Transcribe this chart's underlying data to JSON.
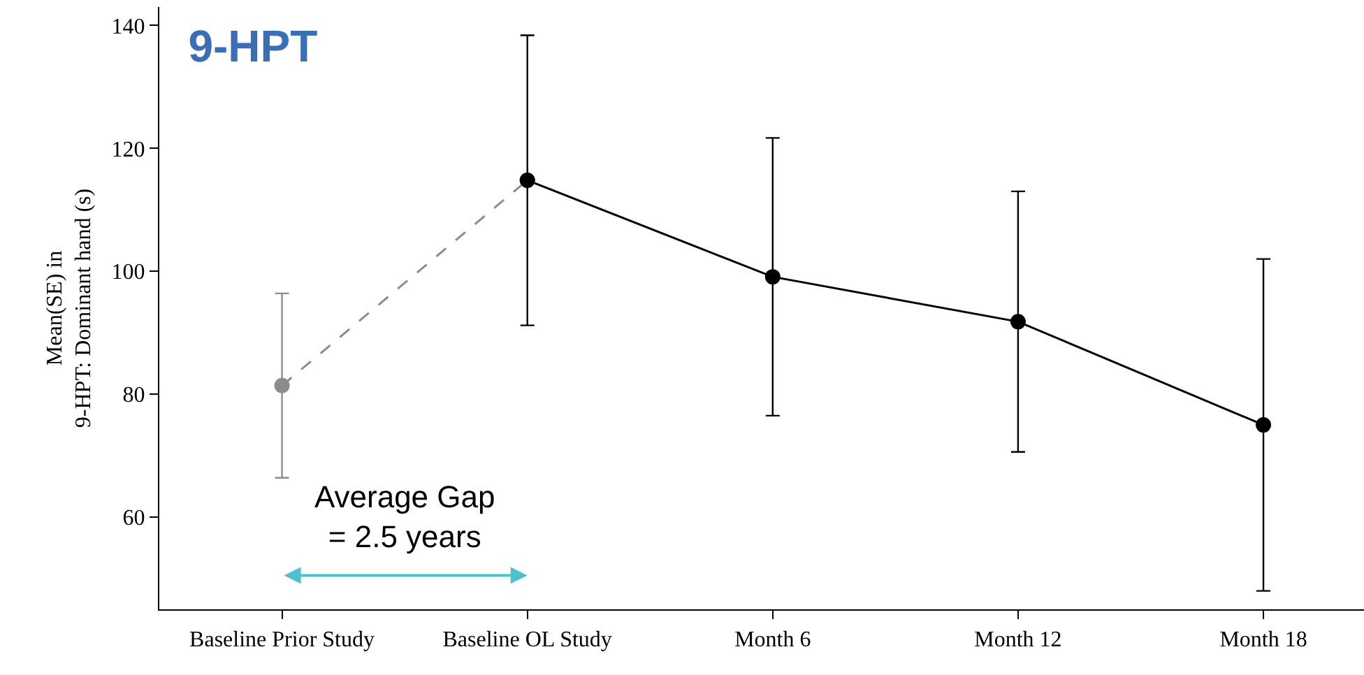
{
  "chart_data": {
    "type": "line",
    "title": "9-HPT",
    "ylabel": "Mean(SE) in\n9-HPT: Dominant hand (s)",
    "categories": [
      "Baseline Prior Study",
      "Baseline OL Study",
      "Month 6",
      "Month 12",
      "Month 18"
    ],
    "series": [
      {
        "color": "#8c8c8c",
        "line_style": "dashed",
        "values": [
          81.4,
          114.8,
          null,
          null,
          null
        ],
        "errors": [
          15,
          null,
          null,
          null,
          null
        ]
      },
      {
        "color": "#000000",
        "line_style": "solid",
        "values": [
          null,
          114.8,
          99.1,
          91.8,
          75
        ],
        "errors": [
          null,
          23.6,
          22.6,
          21.2,
          27
        ]
      }
    ],
    "ylim": [
      45,
      143
    ],
    "yticks": [
      60,
      80,
      100,
      120,
      140
    ],
    "grid": false,
    "marker": "circle",
    "annotations": [
      "Average Gap\n= 2.5 years"
    ]
  }
}
